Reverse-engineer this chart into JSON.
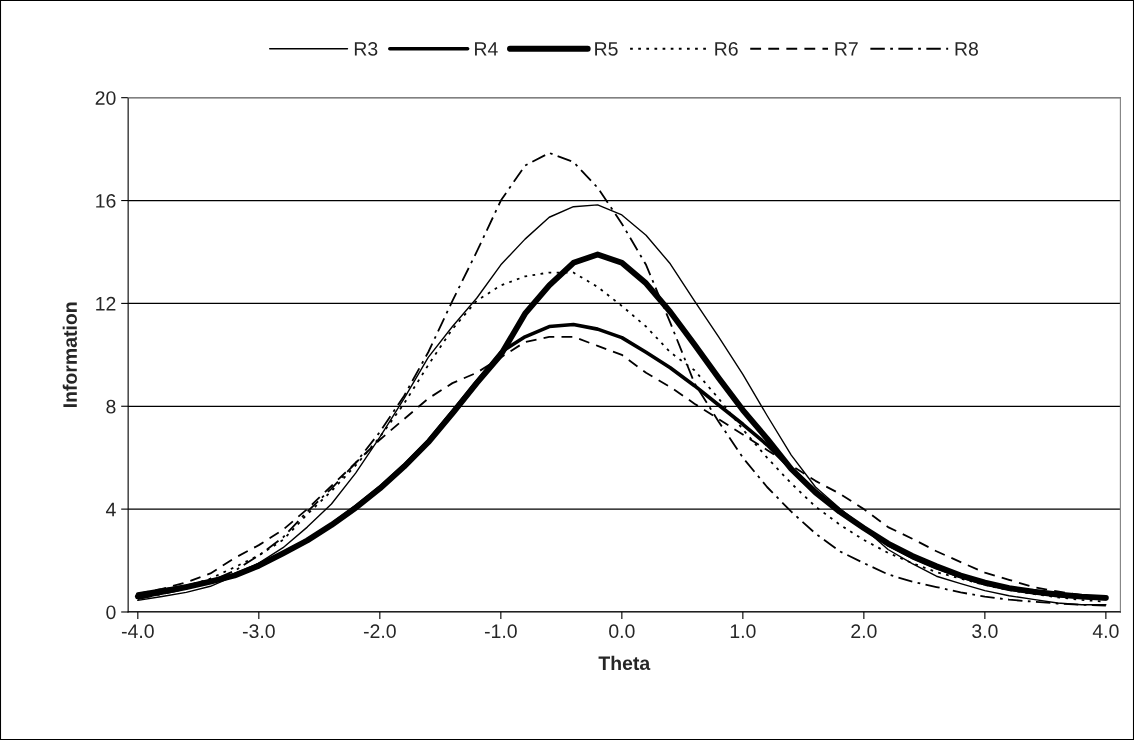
{
  "chart_data": {
    "type": "line",
    "xlabel": "Theta",
    "ylabel": "Information",
    "x": [
      -4.0,
      -3.8,
      -3.6,
      -3.4,
      -3.2,
      -3.0,
      -2.8,
      -2.6,
      -2.4,
      -2.2,
      -2.0,
      -1.8,
      -1.6,
      -1.4,
      -1.2,
      -1.0,
      -0.8,
      -0.6,
      -0.4,
      -0.2,
      0.0,
      0.2,
      0.4,
      0.6,
      0.8,
      1.0,
      1.2,
      1.4,
      1.6,
      1.8,
      2.0,
      2.2,
      2.4,
      2.6,
      2.8,
      3.0,
      3.2,
      3.4,
      3.6,
      3.8,
      4.0
    ],
    "series": [
      {
        "name": "R3",
        "color": "#000000",
        "line_style": "solid",
        "values": [
          0.45,
          0.6,
          0.76,
          1.0,
          1.4,
          1.9,
          2.5,
          3.3,
          4.2,
          5.4,
          6.8,
          8.3,
          9.9,
          11.1,
          12.2,
          13.5,
          14.5,
          15.35,
          15.76,
          15.83,
          15.44,
          14.65,
          13.54,
          12.1,
          10.7,
          9.24,
          7.64,
          6.1,
          4.86,
          4.03,
          3.26,
          2.43,
          1.88,
          1.39,
          1.1,
          0.83,
          0.63,
          0.49,
          0.35,
          0.28,
          0.28
        ]
      },
      {
        "name": "R4",
        "color": "#000000",
        "line_style": "solid",
        "values": [
          0.7,
          0.85,
          1.0,
          1.2,
          1.45,
          1.85,
          2.3,
          2.8,
          3.4,
          4.1,
          4.85,
          5.7,
          6.65,
          7.8,
          8.95,
          10.1,
          10.7,
          11.1,
          11.18,
          11.0,
          10.67,
          10.1,
          9.5,
          8.8,
          8.05,
          7.3,
          6.5,
          5.56,
          4.7,
          3.96,
          3.26,
          2.62,
          2.12,
          1.72,
          1.38,
          1.1,
          0.9,
          0.76,
          0.65,
          0.58,
          0.52
        ]
      },
      {
        "name": "R5",
        "color": "#000000",
        "line_style": "solid",
        "values": [
          0.6,
          0.78,
          0.97,
          1.18,
          1.42,
          1.8,
          2.28,
          2.78,
          3.38,
          4.05,
          4.8,
          5.65,
          6.6,
          7.72,
          8.9,
          10.0,
          11.6,
          12.7,
          13.58,
          13.9,
          13.58,
          12.78,
          11.67,
          10.4,
          9.1,
          7.85,
          6.74,
          5.56,
          4.65,
          3.9,
          3.26,
          2.66,
          2.18,
          1.78,
          1.42,
          1.14,
          0.93,
          0.79,
          0.68,
          0.6,
          0.55
        ]
      },
      {
        "name": "R6",
        "color": "#000000",
        "line_style": "dotted",
        "values": [
          0.6,
          0.75,
          1.0,
          1.3,
          1.74,
          2.2,
          2.8,
          3.8,
          4.7,
          5.7,
          6.8,
          8.1,
          9.6,
          11.0,
          12.1,
          12.7,
          13.05,
          13.2,
          13.2,
          12.64,
          11.9,
          11.1,
          10.1,
          9.4,
          8.3,
          7.1,
          6.0,
          5.0,
          4.1,
          3.4,
          2.8,
          2.3,
          1.9,
          1.55,
          1.3,
          1.05,
          0.85,
          0.7,
          0.57,
          0.47,
          0.4
        ]
      },
      {
        "name": "R7",
        "color": "#000000",
        "line_style": "dashed",
        "values": [
          0.7,
          0.9,
          1.15,
          1.5,
          2.1,
          2.6,
          3.2,
          4.0,
          4.9,
          5.8,
          6.7,
          7.5,
          8.3,
          8.9,
          9.3,
          9.9,
          10.5,
          10.7,
          10.7,
          10.35,
          10.0,
          9.3,
          8.75,
          8.1,
          7.5,
          6.9,
          6.3,
          5.7,
          5.1,
          4.6,
          4.0,
          3.3,
          2.85,
          2.36,
          1.94,
          1.53,
          1.25,
          0.97,
          0.8,
          0.65,
          0.55
        ]
      },
      {
        "name": "R8",
        "color": "#000000",
        "line_style": "dashdot",
        "values": [
          0.5,
          0.7,
          0.9,
          1.2,
          1.6,
          2.2,
          2.9,
          3.9,
          4.8,
          5.8,
          7.0,
          8.4,
          10.1,
          12.1,
          14.0,
          16.0,
          17.36,
          17.85,
          17.5,
          16.5,
          15.1,
          13.5,
          11.25,
          8.9,
          7.4,
          6.0,
          4.86,
          3.9,
          3.05,
          2.36,
          1.9,
          1.46,
          1.18,
          0.97,
          0.76,
          0.6,
          0.48,
          0.4,
          0.33,
          0.28,
          0.25
        ]
      }
    ],
    "xlim": [
      -4.08,
      4.12
    ],
    "xticks": [
      {
        "value": -4,
        "label": "-4.0"
      },
      {
        "value": -3,
        "label": "-3.0"
      },
      {
        "value": -2,
        "label": "-2.0"
      },
      {
        "value": -1,
        "label": "-1.0"
      },
      {
        "value": 0,
        "label": "0.0"
      },
      {
        "value": 1,
        "label": "1.0"
      },
      {
        "value": 2,
        "label": "2.0"
      },
      {
        "value": 3,
        "label": "3.0"
      },
      {
        "value": 4,
        "label": "4.0"
      }
    ],
    "ylim": [
      0,
      20
    ],
    "yticks": [
      0,
      4,
      8,
      12,
      16,
      20
    ],
    "grid": "y",
    "legend": "top"
  }
}
